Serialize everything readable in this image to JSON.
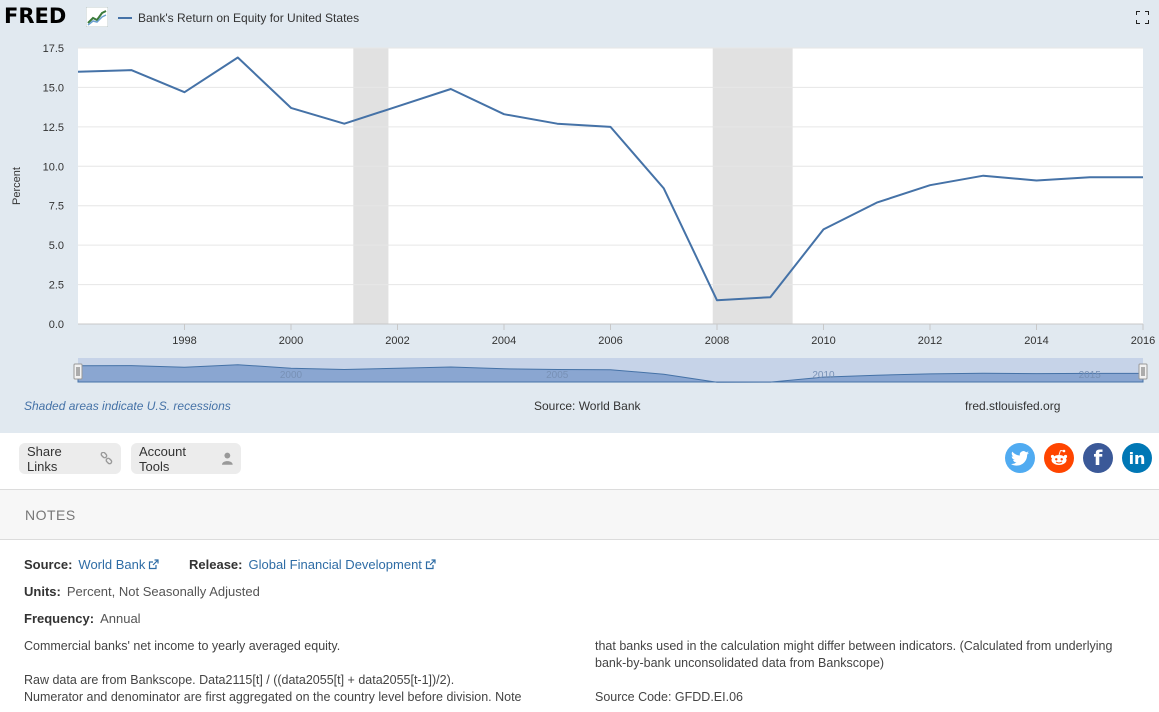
{
  "header": {
    "logo_text": "FRED",
    "series_title": "Bank's Return on Equity for United States",
    "series_color": "#4572a7"
  },
  "chart_data": {
    "type": "line",
    "title": "Bank's Return on Equity for United States",
    "ylabel": "Percent",
    "xlabel": "",
    "ylim": [
      0,
      17.5
    ],
    "xlim": [
      1996,
      2016
    ],
    "y_ticks": [
      "0.0",
      "2.5",
      "5.0",
      "7.5",
      "10.0",
      "12.5",
      "15.0",
      "17.5"
    ],
    "x_ticks": [
      "1998",
      "2000",
      "2002",
      "2004",
      "2006",
      "2008",
      "2010",
      "2012",
      "2014",
      "2016"
    ],
    "grid": true,
    "recessions": [
      [
        2001.17,
        2001.83
      ],
      [
        2007.92,
        2009.42
      ]
    ],
    "series": [
      {
        "name": "Bank's Return on Equity for United States",
        "color": "#4572a7",
        "x": [
          1996,
          1997,
          1998,
          1999,
          2000,
          2001,
          2002,
          2003,
          2004,
          2005,
          2006,
          2007,
          2008,
          2009,
          2010,
          2011,
          2012,
          2013,
          2014,
          2015,
          2016
        ],
        "values": [
          16.0,
          16.1,
          14.7,
          16.9,
          13.7,
          12.7,
          13.8,
          14.9,
          13.3,
          12.7,
          12.5,
          8.6,
          1.5,
          1.7,
          6.0,
          7.7,
          8.8,
          9.4,
          9.1,
          9.3,
          9.3
        ]
      }
    ],
    "navigator_labels": [
      "2000",
      "2005",
      "2010",
      "2015"
    ]
  },
  "footer_notes": {
    "recession_note": "Shaded areas indicate U.S. recessions",
    "source": "Source: World Bank",
    "site": "fred.stlouisfed.org"
  },
  "toolbar": {
    "share_label": "Share Links",
    "account_label": "Account Tools"
  },
  "social": {
    "linkedin_text": "in",
    "facebook_text": "f"
  },
  "notes": {
    "title": "NOTES",
    "source_label": "Source:",
    "source_value": "World Bank",
    "release_label": "Release:",
    "release_value": "Global Financial Development",
    "units_label": "Units:",
    "units_value": "Percent, Not Seasonally Adjusted",
    "frequency_label": "Frequency:",
    "frequency_value": "Annual",
    "description_1": "Commercial banks' net income to yearly averaged equity.",
    "description_2a": "Raw data are from Bankscope. Data2115[t] / ((data2055[t] + data2055[t-1])/2).",
    "description_2b": "Numerator and denominator are first aggregated on the country level before division. Note",
    "description_3": "that banks used in the calculation might differ between indicators. (Calculated from underlying bank-by-bank unconsolidated data from Bankscope)",
    "source_code": "Source Code: GFDD.EI.06"
  }
}
